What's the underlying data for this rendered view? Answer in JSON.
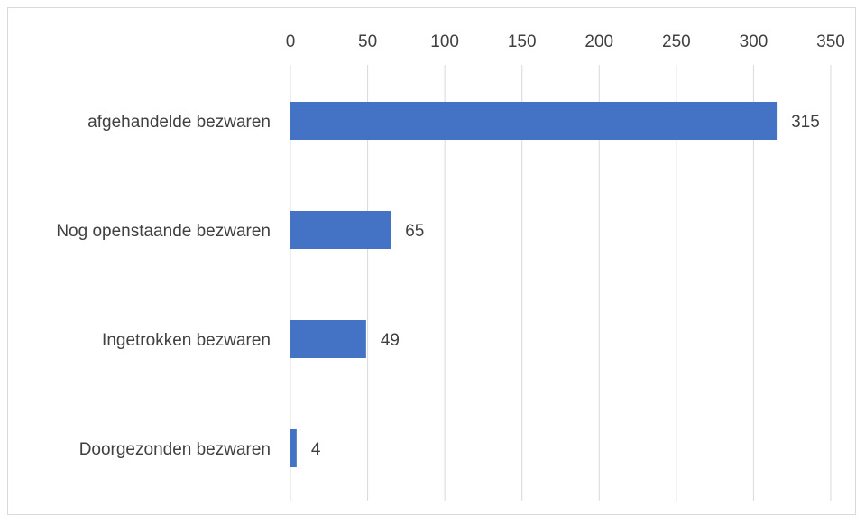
{
  "chart_data": {
    "type": "bar",
    "orientation": "horizontal",
    "title": "",
    "xlabel": "",
    "ylabel": "",
    "categories": [
      "afgehandelde bezwaren",
      "Nog openstaande bezwaren",
      "Ingetrokken bezwaren",
      "Doorgezonden bezwaren"
    ],
    "values": [
      315,
      65,
      49,
      4
    ],
    "xlim": [
      0,
      350
    ],
    "ticks": [
      0,
      50,
      100,
      150,
      200,
      250,
      300,
      350
    ],
    "tick_labels": [
      "0",
      "50",
      "100",
      "150",
      "200",
      "250",
      "300",
      "350"
    ],
    "data_labels": [
      "315",
      "65",
      "49",
      "4"
    ],
    "axis_position": "top",
    "grid": true,
    "legend": "none",
    "bar_color": "#4472C4",
    "grid_color": "#d9d9d9"
  }
}
